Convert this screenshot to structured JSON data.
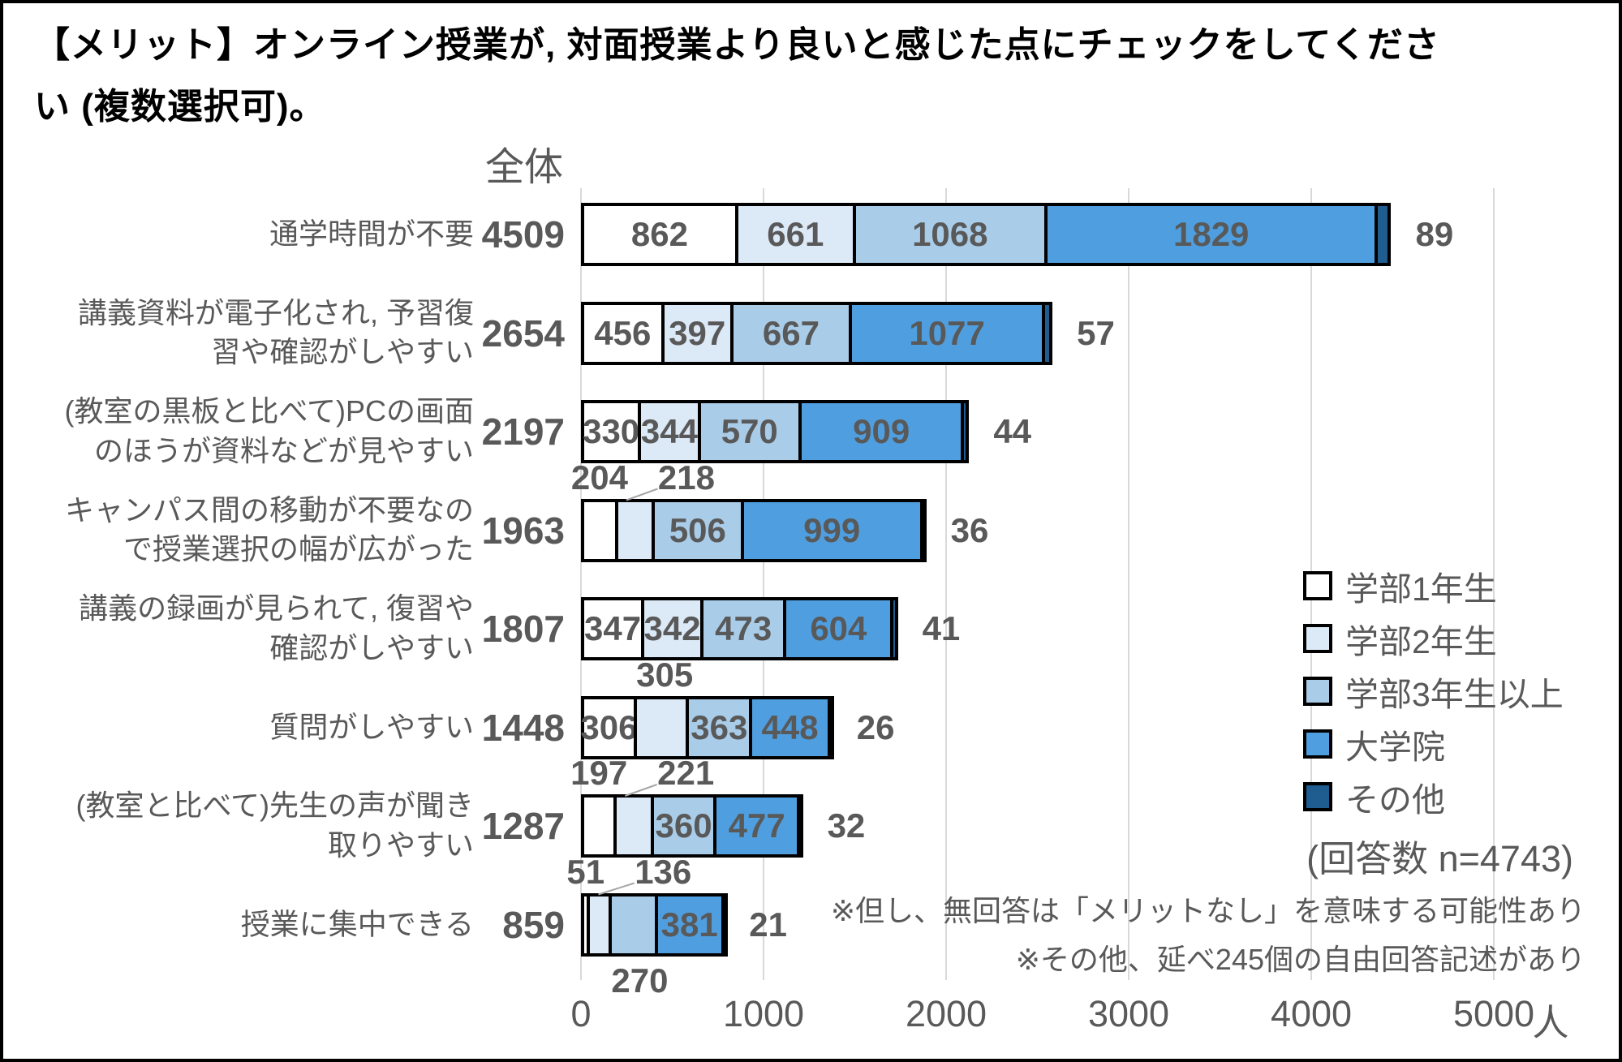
{
  "title": "【メリット】オンライン授業が, 対面授業より良いと感じた点にチェックをしてくださ\nい (複数選択可)。",
  "header": {
    "total_label": "全体"
  },
  "legend": {
    "items": [
      {
        "label": "学部1年生",
        "color": "#FFFFFF"
      },
      {
        "label": "学部2年生",
        "color": "#DCE9F6"
      },
      {
        "label": "学部3年生以上",
        "color": "#A9CCE9"
      },
      {
        "label": "大学院",
        "color": "#4F9FE0"
      },
      {
        "label": "その他",
        "color": "#1F5C8F"
      }
    ],
    "note": "(回答数 n=4743)"
  },
  "footnotes": [
    "※但し、無回答は「メリットなし」を意味する可能性あり",
    "※その他、延べ245個の自由回答記述があり"
  ],
  "colors": {
    "bar_border": "#000000",
    "grid": "#D9D9D9",
    "text_gray": "#595959",
    "leader": "#A6A6A6",
    "palette": [
      "#FFFFFF",
      "#DCE9F6",
      "#A9CCE9",
      "#4F9FE0",
      "#1F5C8F"
    ]
  },
  "chart_data": {
    "type": "bar",
    "orientation": "horizontal",
    "stacked": true,
    "x_axis": {
      "ticks": [
        0,
        1000,
        2000,
        3000,
        4000,
        5000
      ],
      "max": 5000,
      "unit": "人",
      "grid": true
    },
    "legend_position": "right",
    "series_names": [
      "学部1年生",
      "学部2年生",
      "学部3年生以上",
      "大学院",
      "その他"
    ],
    "rows": [
      {
        "category": "通学時間が不要",
        "category_lines": "通学時間が不要",
        "total": 4509,
        "values": [
          862,
          661,
          1068,
          1829,
          89
        ],
        "label_pos": [
          "in",
          "in",
          "in",
          "in",
          "right"
        ]
      },
      {
        "category": "講義資料が電子化され, 予習復習や確認がしやすい",
        "category_lines": "講義資料が電子化され, 予習復\n習や確認がしやすい",
        "total": 2654,
        "values": [
          456,
          397,
          667,
          1077,
          57
        ],
        "label_pos": [
          "in",
          "in",
          "in",
          "in",
          "right"
        ]
      },
      {
        "category": "(教室の黒板と比べて)PCの画面のほうが資料などが見やすい",
        "category_lines": "(教室の黒板と比べて)PCの画面\nのほうが資料などが見やすい",
        "total": 2197,
        "values": [
          330,
          344,
          570,
          909,
          44
        ],
        "label_pos": [
          "in",
          "in",
          "in",
          "in",
          "right"
        ]
      },
      {
        "category": "キャンパス間の移動が不要なので授業選択の幅が広がった",
        "category_lines": "キャンパス間の移動が不要なの\nで授業選択の幅が広がった",
        "total": 1963,
        "values": [
          204,
          218,
          506,
          999,
          36
        ],
        "label_pos": [
          "above",
          "above",
          "in",
          "in",
          "right"
        ]
      },
      {
        "category": "講義の録画が見られて, 復習や確認がしやすい",
        "category_lines": "講義の録画が見られて, 復習や\n確認がしやすい",
        "total": 1807,
        "values": [
          347,
          342,
          473,
          604,
          41
        ],
        "label_pos": [
          "in",
          "in",
          "in",
          "in",
          "right"
        ]
      },
      {
        "category": "質問がしやすい",
        "category_lines": "質問がしやすい",
        "total": 1448,
        "values": [
          306,
          305,
          363,
          448,
          26
        ],
        "label_pos": [
          "in",
          "above",
          "in",
          "in",
          "right"
        ]
      },
      {
        "category": "(教室と比べて)先生の声が聞き取りやすい",
        "category_lines": "(教室と比べて)先生の声が聞き\n取りやすい",
        "total": 1287,
        "values": [
          197,
          221,
          360,
          477,
          32
        ],
        "label_pos": [
          "above",
          "above",
          "in",
          "in",
          "right"
        ]
      },
      {
        "category": "授業に集中できる",
        "category_lines": "授業に集中できる",
        "total": 859,
        "values": [
          51,
          136,
          270,
          381,
          21
        ],
        "label_pos": [
          "above",
          "above",
          "below",
          "in",
          "right"
        ]
      }
    ]
  }
}
